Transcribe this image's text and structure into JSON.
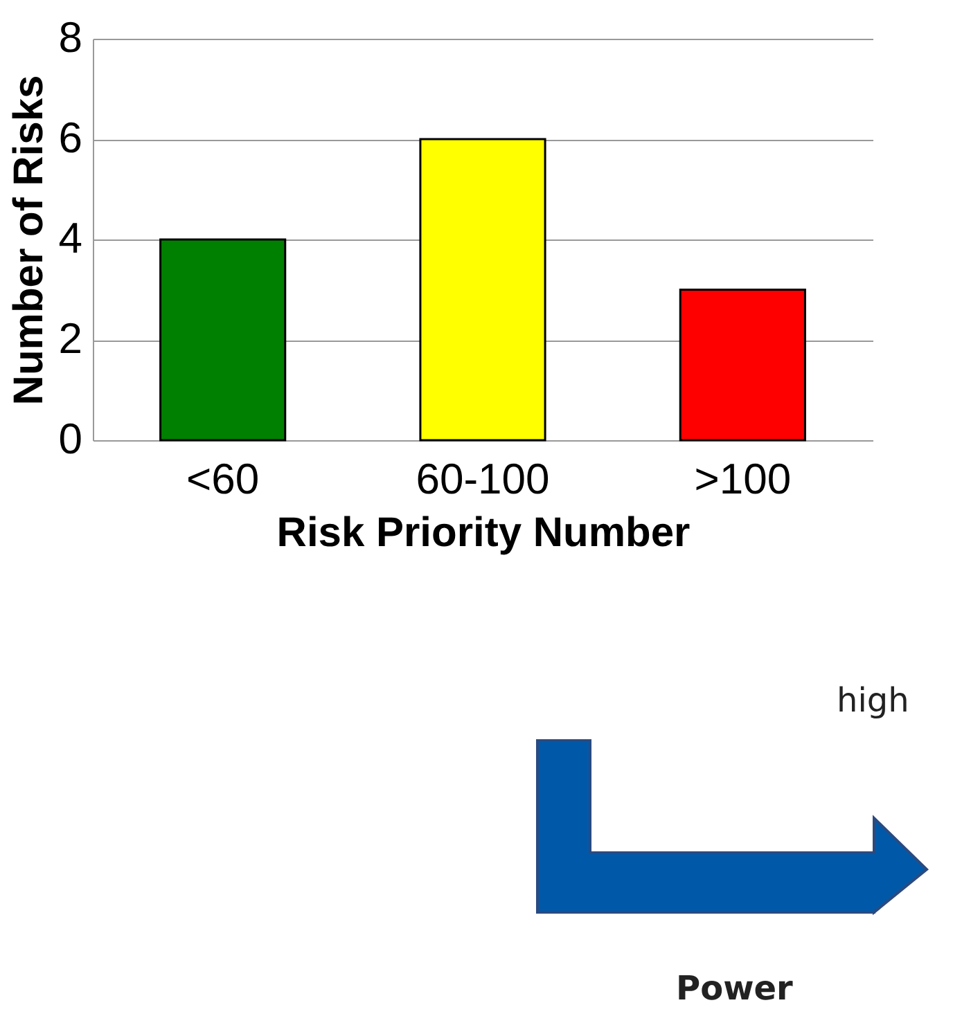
{
  "chart_data": {
    "type": "bar",
    "xlabel": "Risk Priority Number",
    "ylabel": "Number of Risks",
    "categories": [
      "<60",
      "60-100",
      ">100"
    ],
    "values": [
      4,
      6,
      3
    ],
    "colors": [
      "#008000",
      "#ffff00",
      "#ff0000"
    ],
    "ylim": [
      0,
      8
    ],
    "yticks": [
      0,
      2,
      4,
      6,
      8
    ],
    "grid": "y",
    "annotations": [
      "high",
      "Power"
    ]
  }
}
